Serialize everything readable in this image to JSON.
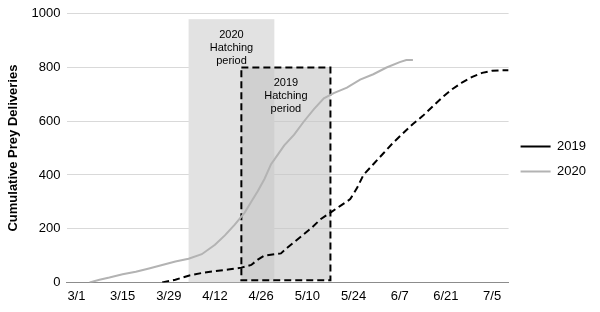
{
  "chart_data": {
    "type": "line",
    "y_label": "Cumulative Prey Deliveries",
    "xlim": [
      -3,
      131
    ],
    "xticks": [
      {
        "value": 0,
        "label": "3/1"
      },
      {
        "value": 14,
        "label": "3/15"
      },
      {
        "value": 28,
        "label": "3/29"
      },
      {
        "value": 42,
        "label": "4/12"
      },
      {
        "value": 56,
        "label": "4/26"
      },
      {
        "value": 70,
        "label": "5/10"
      },
      {
        "value": 84,
        "label": "5/24"
      },
      {
        "value": 98,
        "label": "6/7"
      },
      {
        "value": 112,
        "label": "6/21"
      },
      {
        "value": 126,
        "label": "7/5"
      }
    ],
    "ylim": [
      0,
      1000
    ],
    "yticks": [
      0,
      200,
      400,
      600,
      800,
      1000
    ],
    "grid": true,
    "legend": "right",
    "series": [
      {
        "name": "2019",
        "color": "#000000",
        "line_style": "dashed",
        "x": [
          26,
          30,
          34,
          38,
          42,
          46,
          50,
          53,
          55,
          57,
          60,
          62,
          64,
          66,
          68,
          71,
          74,
          77,
          80,
          83,
          85,
          87,
          90,
          93,
          96,
          99,
          102,
          105,
          108,
          111,
          114,
          117,
          120,
          123,
          126,
          129,
          131
        ],
        "values": [
          0,
          10,
          25,
          35,
          42,
          48,
          55,
          65,
          85,
          100,
          105,
          108,
          130,
          150,
          170,
          200,
          235,
          260,
          285,
          310,
          350,
          400,
          440,
          480,
          520,
          555,
          590,
          620,
          655,
          690,
          720,
          745,
          765,
          780,
          788,
          790,
          790
        ]
      },
      {
        "name": "2020",
        "color": "#b3b3b3",
        "line_style": "solid",
        "x": [
          4,
          7,
          10,
          14,
          18,
          22,
          26,
          30,
          34,
          38,
          42,
          45,
          48,
          51,
          53,
          55,
          57,
          59,
          61,
          63,
          66,
          69,
          72,
          75,
          78,
          82,
          86,
          90,
          94,
          98,
          100,
          102
        ],
        "values": [
          0,
          10,
          18,
          30,
          40,
          52,
          65,
          78,
          88,
          105,
          140,
          175,
          215,
          260,
          300,
          340,
          385,
          440,
          475,
          510,
          550,
          600,
          645,
          685,
          705,
          725,
          755,
          775,
          800,
          820,
          828,
          828
        ]
      }
    ],
    "annotations": [
      {
        "text": [
          "2020",
          "Hatching",
          "period"
        ],
        "x_range": [
          34,
          60
        ],
        "y_range": [
          0,
          980
        ],
        "color": "#e2e2e2",
        "line_style": "none"
      },
      {
        "text": [
          "2019",
          "Hatching",
          "period"
        ],
        "x_range": [
          50,
          77
        ],
        "y_range": [
          8,
          800
        ],
        "color": "#c4c4c4",
        "line_style": "dashed"
      }
    ]
  }
}
